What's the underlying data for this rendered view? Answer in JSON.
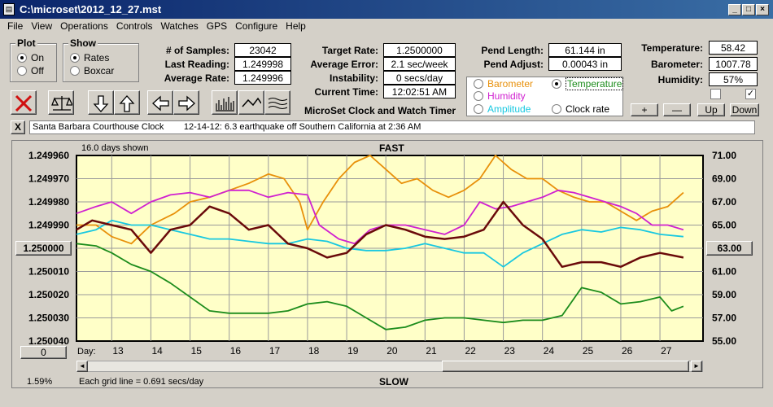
{
  "window": {
    "title": "C:\\microset\\2012_12_27.mst",
    "app_icon": "microset-app-icon"
  },
  "menu": [
    "File",
    "View",
    "Operations",
    "Controls",
    "Watches",
    "GPS",
    "Configure",
    "Help"
  ],
  "plot_group": {
    "title": "Plot",
    "options": [
      "On",
      "Off"
    ],
    "selected": "On"
  },
  "show_group": {
    "title": "Show",
    "options": [
      "Rates",
      "Boxcar"
    ],
    "selected": "Rates"
  },
  "stats": {
    "samples_label": "# of Samples:",
    "samples": "23042",
    "last_label": "Last Reading:",
    "last": "1.249998",
    "avg_label": "Average Rate:",
    "avg": "1.249996",
    "target_label": "Target Rate:",
    "target": "1.2500000",
    "avgerr_label": "Average Error:",
    "avgerr": "2.1 sec/week",
    "instab_label": "Instability:",
    "instab": "0 secs/day",
    "time_label": "Current Time:",
    "time": "12:02:51 AM",
    "pendlen_label": "Pend Length:",
    "pendlen": "61.144 in",
    "pendadj_label": "Pend Adjust:",
    "pendadj": "0.00043 in",
    "temp_label": "Temperature:",
    "temp": "58.42",
    "baro_label": "Barometer:",
    "baro": "1007.78",
    "hum_label": "Humidity:",
    "hum": "57%"
  },
  "app_caption": "MicroSet Clock and Watch Timer",
  "selector": {
    "items": [
      {
        "label": "Barometer",
        "color": "#e8900a",
        "selected": false
      },
      {
        "label": "Temperature",
        "color": "#1c8c1c",
        "selected": true
      },
      {
        "label": "Humidity",
        "color": "#d020d0",
        "selected": false
      },
      {
        "label": "Clock rate",
        "color": "#000000",
        "selected": false
      },
      {
        "label": "Amplitude",
        "color": "#18c8e0",
        "selected": false
      }
    ]
  },
  "small_buttons": {
    "plus": "+",
    "minus": "—",
    "up": "Up",
    "down": "Down"
  },
  "checkboxes": [
    {
      "checked": false
    },
    {
      "checked": true
    }
  ],
  "message": {
    "close": "X",
    "text": "Santa Barbara Courthouse Clock        12-14-12: 6.3 earthquake off Southern California at 2:36 AM"
  },
  "chart": {
    "top_left_note": "16.0 days shown",
    "fast_label": "FAST",
    "slow_label": "SLOW",
    "grid_note": "Each grid line = 0.691 secs/day",
    "percent": "1.59%",
    "day_label": "Day:",
    "left_button": "1.250000",
    "right_button": "63.00",
    "zero_button": "0",
    "scroll_left": "◄",
    "scroll_right": "►"
  },
  "chart_data": {
    "type": "line",
    "x_label": "Day:",
    "x_ticks": [
      "13",
      "14",
      "15",
      "16",
      "17",
      "18",
      "19",
      "20",
      "21",
      "22",
      "23",
      "24",
      "25",
      "26",
      "27"
    ],
    "xlim": [
      12.1,
      28.1
    ],
    "y_left_ticks": [
      "1.249960",
      "1.249970",
      "1.249980",
      "1.249990",
      "1.250000",
      "1.250010",
      "1.250020",
      "1.250030",
      "1.250040"
    ],
    "y_left_range": [
      1.24996,
      1.25004
    ],
    "y_right_ticks": [
      "71.00",
      "69.00",
      "67.00",
      "65.00",
      "63.00",
      "61.00",
      "59.00",
      "57.00",
      "55.00"
    ],
    "y_right_range": [
      71,
      55
    ],
    "grid": true,
    "series": [
      {
        "name": "Barometer",
        "color": "#e8900a",
        "axis": "left",
        "x": [
          12.1,
          12.6,
          13.0,
          13.5,
          14.0,
          14.6,
          15.0,
          15.5,
          16.0,
          16.5,
          17.0,
          17.4,
          17.8,
          18.0,
          18.4,
          18.8,
          19.2,
          19.6,
          20.0,
          20.4,
          20.8,
          21.2,
          21.6,
          22.0,
          22.4,
          22.8,
          23.2,
          23.6,
          24.0,
          24.4,
          24.8,
          25.2,
          25.6,
          26.0,
          26.4,
          26.8,
          27.2,
          27.6
        ],
        "y": [
          1.24999,
          1.24999,
          1.249995,
          1.249998,
          1.24999,
          1.249985,
          1.24998,
          1.249978,
          1.249975,
          1.249972,
          1.249968,
          1.24997,
          1.24998,
          1.249992,
          1.24998,
          1.24997,
          1.249963,
          1.24996,
          1.249966,
          1.249972,
          1.24997,
          1.249975,
          1.249978,
          1.249975,
          1.24997,
          1.24996,
          1.249966,
          1.24997,
          1.24997,
          1.249975,
          1.249978,
          1.24998,
          1.24998,
          1.249984,
          1.249988,
          1.249984,
          1.249982,
          1.249976
        ]
      },
      {
        "name": "Humidity",
        "color": "#d020d0",
        "axis": "left",
        "x": [
          12.1,
          12.6,
          13.0,
          13.5,
          14.0,
          14.5,
          15.0,
          15.5,
          16.0,
          16.5,
          17.0,
          17.5,
          18.0,
          18.3,
          18.8,
          19.2,
          19.6,
          20.0,
          20.5,
          21.0,
          21.5,
          22.0,
          22.4,
          22.8,
          23.2,
          23.6,
          24.0,
          24.4,
          24.8,
          25.2,
          25.6,
          26.0,
          26.4,
          26.8,
          27.2,
          27.6
        ],
        "y": [
          1.249985,
          1.249982,
          1.24998,
          1.249985,
          1.24998,
          1.249977,
          1.249976,
          1.249978,
          1.249975,
          1.249975,
          1.249978,
          1.249976,
          1.249977,
          1.24999,
          1.249996,
          1.249998,
          1.249992,
          1.24999,
          1.24999,
          1.249992,
          1.249994,
          1.24999,
          1.24998,
          1.249983,
          1.249982,
          1.24998,
          1.249978,
          1.249975,
          1.249976,
          1.249978,
          1.24998,
          1.249982,
          1.249985,
          1.24999,
          1.24999,
          1.249992
        ]
      },
      {
        "name": "Amplitude",
        "color": "#18c8e0",
        "axis": "left",
        "x": [
          12.1,
          12.6,
          13.0,
          13.5,
          14.0,
          14.5,
          15.0,
          15.5,
          16.0,
          16.5,
          17.0,
          17.5,
          18.0,
          18.5,
          19.0,
          19.5,
          20.0,
          20.5,
          21.0,
          21.5,
          22.0,
          22.5,
          23.0,
          23.5,
          24.0,
          24.5,
          25.0,
          25.5,
          26.0,
          26.5,
          27.0,
          27.6
        ],
        "y": [
          1.249994,
          1.249992,
          1.249988,
          1.24999,
          1.24999,
          1.249992,
          1.249994,
          1.249996,
          1.249996,
          1.249997,
          1.249998,
          1.249998,
          1.249996,
          1.249997,
          1.25,
          1.250001,
          1.250001,
          1.25,
          1.249998,
          1.25,
          1.250002,
          1.250002,
          1.250008,
          1.250002,
          1.249998,
          1.249994,
          1.249992,
          1.249993,
          1.249991,
          1.249992,
          1.249994,
          1.249995
        ]
      },
      {
        "name": "Clock rate",
        "color": "#6a0a0a",
        "axis": "left",
        "x": [
          12.1,
          12.5,
          13.0,
          13.5,
          14.0,
          14.5,
          15.0,
          15.5,
          16.0,
          16.5,
          17.0,
          17.5,
          18.0,
          18.5,
          19.0,
          19.5,
          20.0,
          20.5,
          21.0,
          21.5,
          22.0,
          22.5,
          23.0,
          23.5,
          24.0,
          24.5,
          25.0,
          25.5,
          26.0,
          26.5,
          27.0,
          27.6
        ],
        "y": [
          1.249992,
          1.249988,
          1.24999,
          1.249992,
          1.250002,
          1.249992,
          1.24999,
          1.249982,
          1.249985,
          1.249992,
          1.24999,
          1.249998,
          1.25,
          1.250004,
          1.250002,
          1.249994,
          1.24999,
          1.249992,
          1.249995,
          1.249996,
          1.249995,
          1.249992,
          1.24998,
          1.24999,
          1.249996,
          1.250008,
          1.250006,
          1.250006,
          1.250008,
          1.250004,
          1.250002,
          1.250004
        ]
      },
      {
        "name": "Temperature",
        "color": "#1c8c1c",
        "axis": "right",
        "x": [
          12.1,
          12.6,
          13.0,
          13.5,
          14.0,
          14.5,
          15.0,
          15.5,
          16.0,
          16.5,
          17.0,
          17.5,
          18.0,
          18.5,
          19.0,
          19.5,
          20.0,
          20.5,
          21.0,
          21.5,
          22.0,
          22.5,
          23.0,
          23.5,
          24.0,
          24.5,
          25.0,
          25.5,
          26.0,
          26.5,
          27.0,
          27.3,
          27.6
        ],
        "y": [
          63.4,
          63.2,
          62.6,
          61.6,
          61.0,
          60.0,
          58.8,
          57.6,
          57.4,
          57.4,
          57.4,
          57.6,
          58.2,
          58.4,
          58.0,
          57.0,
          56.0,
          56.2,
          56.8,
          57.0,
          57.0,
          56.8,
          56.6,
          56.8,
          56.8,
          57.2,
          59.6,
          59.2,
          58.2,
          58.4,
          58.8,
          57.6,
          58.0
        ]
      }
    ]
  }
}
